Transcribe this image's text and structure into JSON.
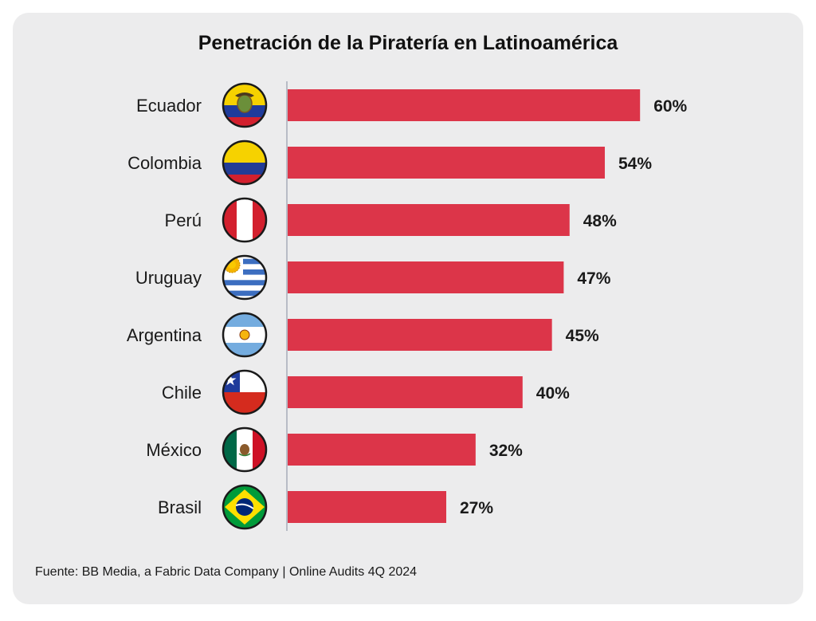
{
  "chart_data": {
    "type": "bar",
    "orientation": "horizontal",
    "title": "Penetración de la Piratería en Latinoamérica",
    "categories": [
      "Ecuador",
      "Colombia",
      "Perú",
      "Uruguay",
      "Argentina",
      "Chile",
      "México",
      "Brasil"
    ],
    "values": [
      60,
      54,
      48,
      47,
      45,
      40,
      32,
      27
    ],
    "value_labels": [
      "60%",
      "54%",
      "48%",
      "47%",
      "45%",
      "40%",
      "32%",
      "27%"
    ],
    "flag_icons": [
      "ecuador-flag-icon",
      "colombia-flag-icon",
      "peru-flag-icon",
      "uruguay-flag-icon",
      "argentina-flag-icon",
      "chile-flag-icon",
      "mexico-flag-icon",
      "brazil-flag-icon"
    ],
    "xlim": [
      0,
      100
    ],
    "bar_color": "#dc3549",
    "background_color": "#ececed",
    "grid": false,
    "legend": "none"
  },
  "source_text": "Fuente: BB Media, a Fabric Data Company | Online Audits 4Q 2024"
}
